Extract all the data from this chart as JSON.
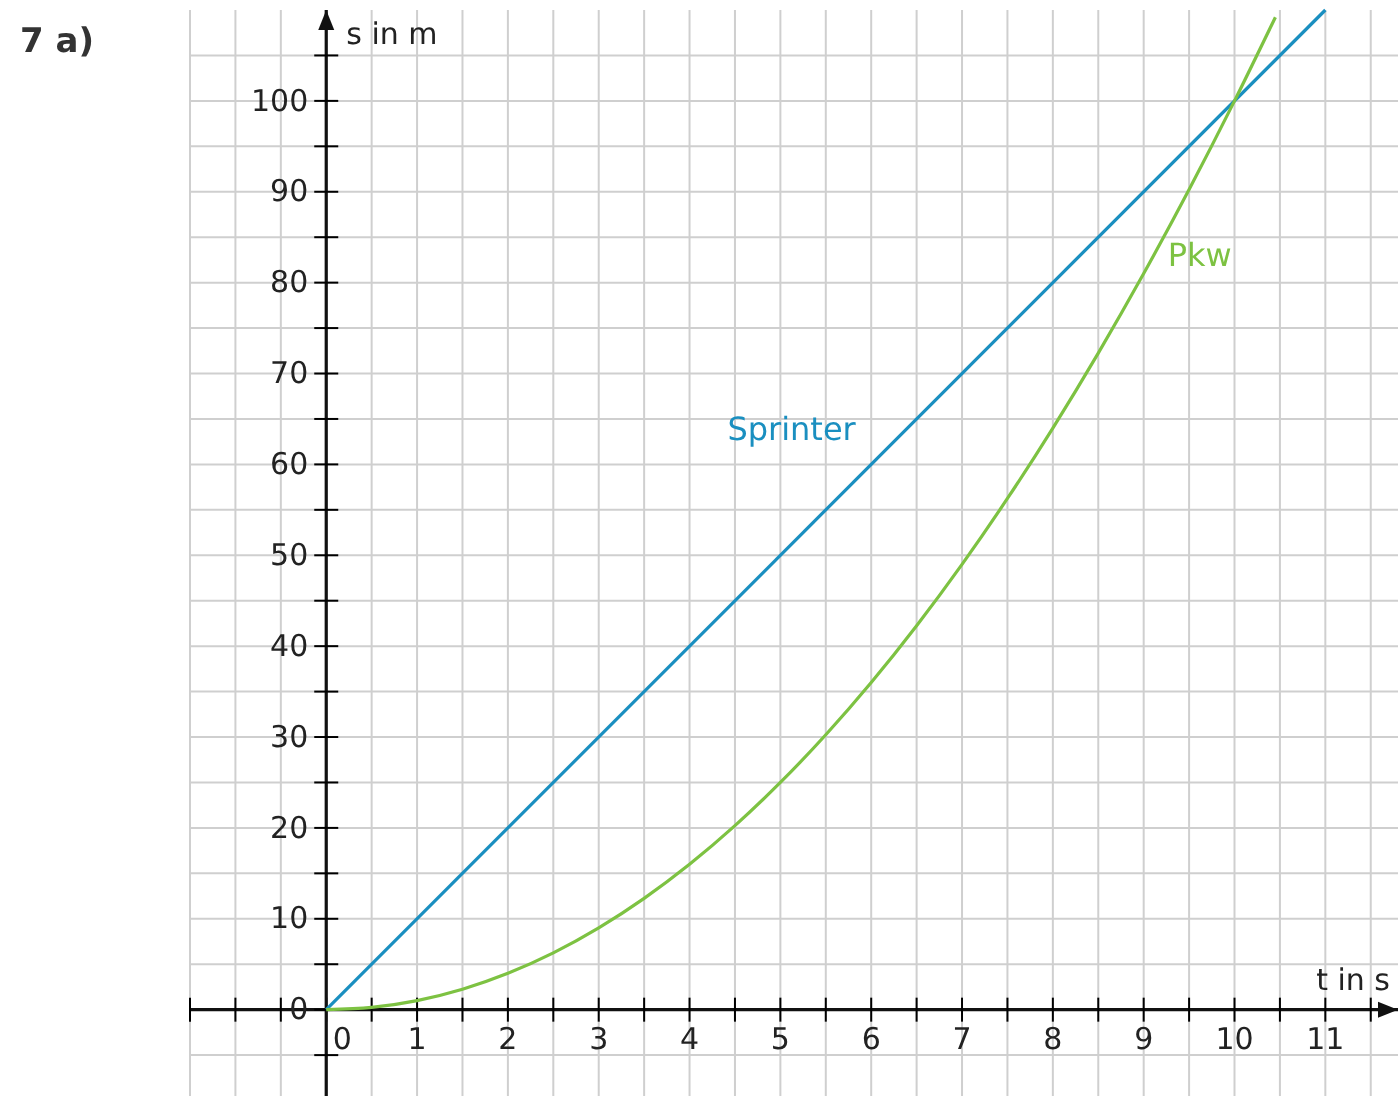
{
  "chart_data": {
    "type": "line",
    "title": "7 a)",
    "xlabel": "t in s",
    "ylabel": "s in m",
    "xlim": [
      -1.5,
      11.8
    ],
    "ylim": [
      -9.5,
      110
    ],
    "xticks": [
      {
        "value": -1.5,
        "label": null
      },
      {
        "value": -1,
        "label": null
      },
      {
        "value": -0.5,
        "label": null
      },
      0,
      {
        "value": 0.5,
        "label": null
      },
      1,
      {
        "value": 1.5,
        "label": null
      },
      2,
      {
        "value": 2.5,
        "label": null
      },
      3,
      {
        "value": 3.5,
        "label": null
      },
      4,
      {
        "value": 4.5,
        "label": null
      },
      5,
      {
        "value": 5.5,
        "label": null
      },
      6,
      {
        "value": 6.5,
        "label": null
      },
      7,
      {
        "value": 7.5,
        "label": null
      },
      8,
      {
        "value": 8.5,
        "label": null
      },
      9,
      {
        "value": 9.5,
        "label": null
      },
      10,
      {
        "value": 10.5,
        "label": null
      },
      11,
      {
        "value": 11.5,
        "label": null
      }
    ],
    "yticks": [
      {
        "value": -5,
        "label": null
      },
      0,
      {
        "value": 5,
        "label": null
      },
      10,
      {
        "value": 15,
        "label": null
      },
      20,
      {
        "value": 25,
        "label": null
      },
      30,
      {
        "value": 35,
        "label": null
      },
      40,
      {
        "value": 45,
        "label": null
      },
      50,
      {
        "value": 55,
        "label": null
      },
      60,
      {
        "value": 65,
        "label": null
      },
      70,
      {
        "value": 75,
        "label": null
      },
      80,
      {
        "value": 85,
        "label": null
      },
      90,
      {
        "value": 95,
        "label": null
      },
      100,
      {
        "value": 105,
        "label": null
      }
    ],
    "grid": true,
    "series": [
      {
        "name": "Sprinter",
        "color": "#1a8fc0",
        "x": [
          0,
          11
        ],
        "values": [
          0,
          110
        ]
      },
      {
        "name": "Pkw",
        "color": "#7dc242",
        "x": [
          0,
          0.5,
          1,
          1.5,
          2,
          2.5,
          3,
          3.5,
          4,
          4.5,
          5,
          5.5,
          6,
          6.5,
          7,
          7.5,
          8,
          8.5,
          9,
          9.5,
          10,
          10.45
        ],
        "values": [
          0,
          0.25,
          1,
          2.25,
          4,
          6.25,
          9,
          12.25,
          16,
          20.25,
          25,
          30.25,
          36,
          42.25,
          49,
          56.25,
          64,
          72.25,
          81,
          90.25,
          100,
          109.2
        ]
      }
    ]
  }
}
